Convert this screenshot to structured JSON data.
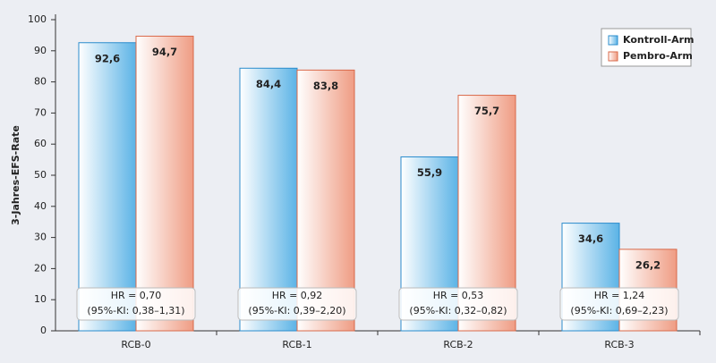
{
  "chart_data": {
    "type": "bar",
    "y_label": "3-Jahres-EFS-Rate",
    "categories": [
      "RCB-0",
      "RCB-1",
      "RCB-2",
      "RCB-3"
    ],
    "series": [
      {
        "name": "Kontroll-Arm",
        "color": "#5bb3e6",
        "values": [
          92.6,
          84.4,
          55.9,
          34.6
        ],
        "value_labels": [
          "92,6",
          "84,4",
          "55,9",
          "34,6"
        ]
      },
      {
        "name": "Pembro-Arm",
        "color": "#ef9c83",
        "values": [
          94.7,
          83.8,
          75.7,
          26.2
        ],
        "value_labels": [
          "94,7",
          "83,8",
          "75,7",
          "26,2"
        ]
      }
    ],
    "annotations": [
      [
        "HR = 0,70",
        "(95%-KI: 0,38–1,31)"
      ],
      [
        "HR = 0,92",
        "(95%-KI: 0,39–2,20)"
      ],
      [
        "HR = 0,53",
        "(95%-KI: 0,32–0,82)"
      ],
      [
        "HR = 1,24",
        "(95%-KI: 0,69–2,23)"
      ]
    ],
    "ylim": [
      0,
      100
    ],
    "yticks": [
      0,
      10,
      20,
      30,
      40,
      50,
      60,
      70,
      80,
      90,
      100
    ],
    "legend": "upper right"
  }
}
